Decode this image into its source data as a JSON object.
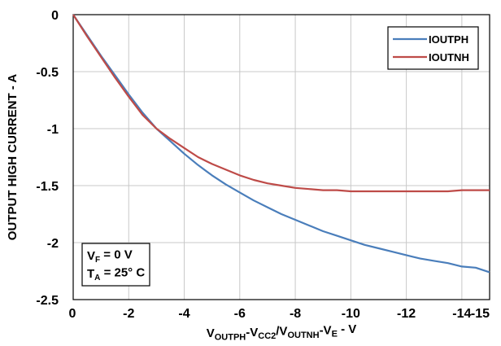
{
  "chart_data": {
    "type": "line",
    "xlabel": {
      "parts": [
        {
          "t": "V",
          "sub": false
        },
        {
          "t": "OUTPH",
          "sub": true
        },
        {
          "t": "-V",
          "sub": false
        },
        {
          "t": "CC2",
          "sub": true
        },
        {
          "t": "/V",
          "sub": false
        },
        {
          "t": "OUTNH",
          "sub": true
        },
        {
          "t": "-V",
          "sub": false
        },
        {
          "t": "E",
          "sub": true
        },
        {
          "t": " - V",
          "sub": false
        }
      ]
    },
    "ylabel": "OUTPUT HIGH CURRENT - A",
    "xlim": [
      0,
      -15
    ],
    "ylim": [
      -2.5,
      0
    ],
    "x_gridlines": [
      0,
      -2,
      -4,
      -6,
      -8,
      -10,
      -12,
      -14
    ],
    "x_ticks": [
      {
        "v": 0,
        "label": "0"
      },
      {
        "v": -2,
        "label": "-2"
      },
      {
        "v": -4,
        "label": "-4"
      },
      {
        "v": -6,
        "label": "-6"
      },
      {
        "v": -8,
        "label": "-8"
      },
      {
        "v": -10,
        "label": "-10"
      },
      {
        "v": -12,
        "label": "-12"
      },
      {
        "v": -14,
        "label": "-14"
      },
      {
        "v": -15,
        "label": "-15"
      }
    ],
    "y_ticks": [
      {
        "v": 0,
        "label": "0"
      },
      {
        "v": -0.5,
        "label": "-0.5"
      },
      {
        "v": -1,
        "label": "-1"
      },
      {
        "v": -1.5,
        "label": "-1.5"
      },
      {
        "v": -2,
        "label": "-2"
      },
      {
        "v": -2.5,
        "label": "-2.5"
      }
    ],
    "grid": true,
    "legend": "top-right",
    "series": [
      {
        "name": "IOUTPH",
        "color": "#4a7ebb",
        "x": [
          0,
          -0.5,
          -1,
          -1.5,
          -2,
          -2.5,
          -3,
          -3.5,
          -4,
          -4.5,
          -5,
          -5.5,
          -6,
          -6.5,
          -7,
          -7.5,
          -8,
          -8.5,
          -9,
          -9.5,
          -10,
          -10.5,
          -11,
          -11.5,
          -12,
          -12.5,
          -13,
          -13.5,
          -14,
          -14.5,
          -15
        ],
        "y": [
          0,
          -0.18,
          -0.36,
          -0.53,
          -0.7,
          -0.86,
          -1.0,
          -1.11,
          -1.22,
          -1.32,
          -1.41,
          -1.49,
          -1.56,
          -1.63,
          -1.69,
          -1.75,
          -1.8,
          -1.85,
          -1.9,
          -1.94,
          -1.98,
          -2.02,
          -2.05,
          -2.08,
          -2.11,
          -2.14,
          -2.16,
          -2.18,
          -2.21,
          -2.22,
          -2.26
        ]
      },
      {
        "name": "IOUTNH",
        "color": "#be4b48",
        "x": [
          0,
          -0.5,
          -1,
          -1.5,
          -2,
          -2.5,
          -3,
          -3.5,
          -4,
          -4.5,
          -5,
          -5.5,
          -6,
          -6.5,
          -7,
          -7.5,
          -8,
          -8.5,
          -9,
          -9.5,
          -10,
          -11,
          -12,
          -13,
          -13.5,
          -14,
          -15
        ],
        "y": [
          0,
          -0.19,
          -0.37,
          -0.55,
          -0.72,
          -0.88,
          -1.0,
          -1.09,
          -1.17,
          -1.25,
          -1.31,
          -1.36,
          -1.41,
          -1.45,
          -1.48,
          -1.5,
          -1.52,
          -1.53,
          -1.54,
          -1.54,
          -1.55,
          -1.55,
          -1.55,
          -1.55,
          -1.55,
          -1.54,
          -1.54
        ]
      }
    ],
    "annotation": [
      {
        "parts": [
          {
            "t": "V",
            "sub": false
          },
          {
            "t": "F",
            "sub": true
          },
          {
            "t": " = 0 V",
            "sub": false
          }
        ]
      },
      {
        "parts": [
          {
            "t": "T",
            "sub": false
          },
          {
            "t": "A",
            "sub": true
          },
          {
            "t": " = 25° C",
            "sub": false
          }
        ]
      }
    ]
  }
}
